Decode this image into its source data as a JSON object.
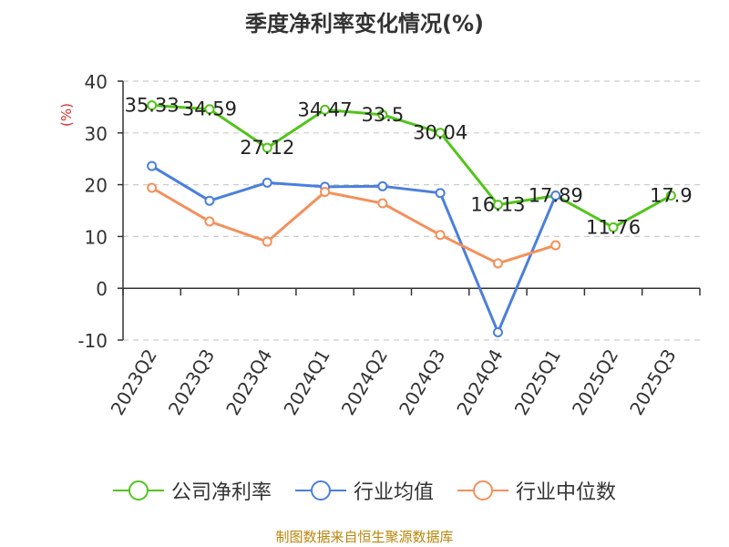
{
  "title": "季度净利率变化情况(%)",
  "source_note": "制图数据来自恒生聚源数据库",
  "chart_data": {
    "type": "line",
    "title": "季度净利率变化情况(%)",
    "ylabel": "(%)",
    "ylim": [
      -10,
      40
    ],
    "yticks": [
      -10,
      0,
      10,
      20,
      30,
      40
    ],
    "grid": true,
    "legend_position": "bottom",
    "categories": [
      "2023Q2",
      "2023Q3",
      "2023Q4",
      "2024Q1",
      "2024Q2",
      "2024Q3",
      "2024Q4",
      "2025Q1",
      "2025Q2",
      "2025Q3"
    ],
    "series": [
      {
        "name": "公司净利率",
        "color": "#52c41a",
        "show_labels": true,
        "values": [
          35.33,
          34.59,
          27.12,
          34.47,
          33.5,
          30.04,
          16.13,
          17.89,
          11.76,
          17.9
        ],
        "labels": [
          "35.33",
          "34.59",
          "27.12",
          "34.47",
          "33.5",
          "30.04",
          "16.13",
          "17.89",
          "11.76",
          "17.9"
        ]
      },
      {
        "name": "行业均值",
        "color": "#4a7fdc",
        "show_labels": false,
        "values": [
          23.6,
          16.9,
          20.4,
          19.6,
          19.7,
          18.4,
          -8.5,
          17.9,
          null,
          null
        ]
      },
      {
        "name": "行业中位数",
        "color": "#f4905b",
        "show_labels": false,
        "values": [
          19.4,
          12.9,
          9.0,
          18.6,
          16.4,
          10.3,
          4.8,
          8.3,
          null,
          null
        ]
      }
    ]
  }
}
